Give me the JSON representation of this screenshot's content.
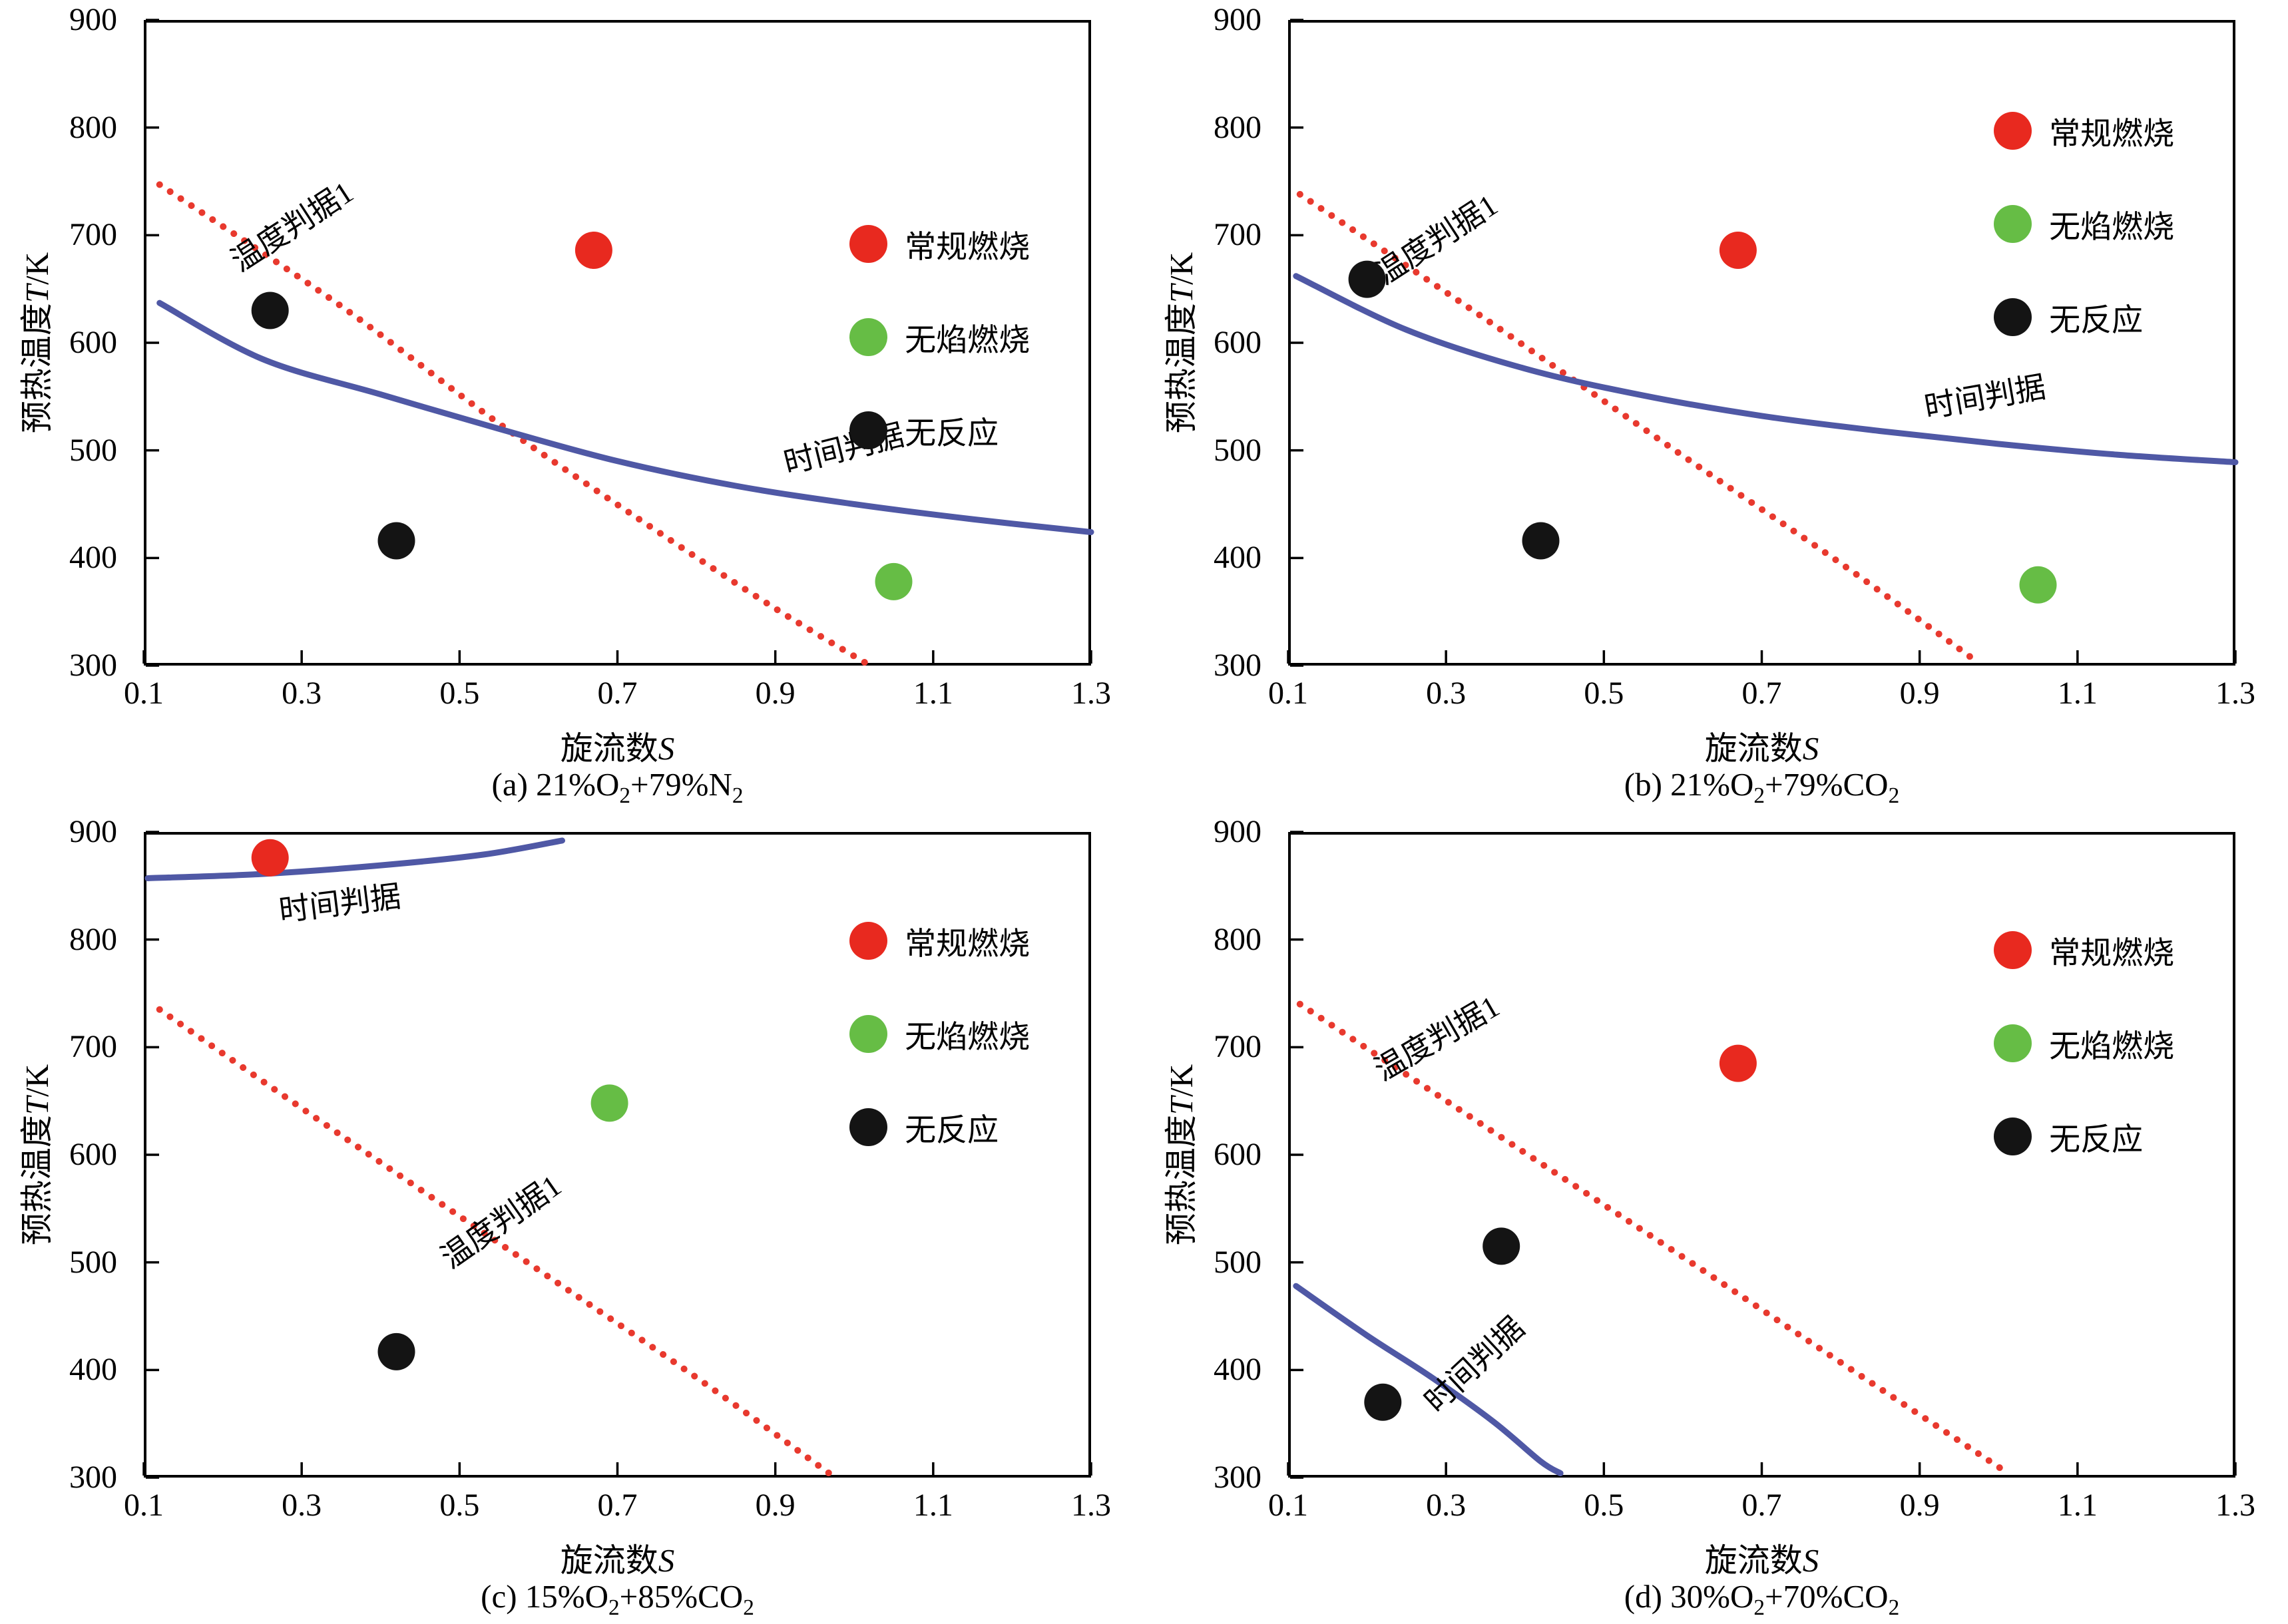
{
  "figure": {
    "background": "#ffffff",
    "axis": {
      "xlabel_parts": [
        {
          "t": "旋流数"
        },
        {
          "t": "S",
          "i": true
        }
      ],
      "ylabel_parts": [
        {
          "t": "预热温度"
        },
        {
          "t": "T",
          "i": true
        },
        {
          "t": "/K"
        }
      ],
      "x_ticks": [
        "0.1",
        "0.3",
        "0.5",
        "0.7",
        "0.9",
        "1.1",
        "1.3"
      ],
      "y_ticks": [
        "300",
        "400",
        "500",
        "600",
        "700",
        "800",
        "900"
      ],
      "x_range": [
        0.1,
        1.3
      ],
      "y_range": [
        300,
        900
      ]
    },
    "colors": {
      "conventional": "#e8291f",
      "flameless": "#66bd45",
      "no_reaction": "#141414",
      "temp_line": "#e8392e",
      "time_line": "#4f58a5",
      "axis": "#000000"
    }
  },
  "chart_data": [
    {
      "id": "a",
      "type": "scatter",
      "caption_text": "(a) 21%O2+79%N2",
      "caption_parts": [
        {
          "t": "(a) 21%O"
        },
        {
          "t": "2",
          "sub": true
        },
        {
          "t": "+79%N"
        },
        {
          "t": "2",
          "sub": true
        }
      ],
      "legend": [
        {
          "label": "常规燃烧",
          "color": "#e8291f",
          "series": "conventional"
        },
        {
          "label": "无焰燃烧",
          "color": "#66bd45",
          "series": "flameless"
        },
        {
          "label": "无反应",
          "color": "#141414",
          "series": "no_reaction"
        }
      ],
      "legend_pos": {
        "left_frac": 0.745,
        "top_frac": 0.275
      },
      "points": {
        "conventional": [
          [
            0.67,
            686
          ]
        ],
        "flameless": [
          [
            1.05,
            378
          ]
        ],
        "no_reaction": [
          [
            0.26,
            630
          ],
          [
            0.42,
            416
          ]
        ]
      },
      "lines": [
        {
          "name": "temp-criterion",
          "style": "dotted",
          "color": "#e8392e",
          "points": [
            [
              0.12,
              747
            ],
            [
              0.35,
              634
            ],
            [
              0.55,
              525
            ],
            [
              0.75,
              425
            ],
            [
              0.9,
              353
            ],
            [
              1.02,
              300
            ]
          ],
          "label": {
            "text": "温度判据1",
            "x": 0.295,
            "y": 700,
            "rot": -33
          }
        },
        {
          "name": "time-criterion",
          "style": "solid",
          "color": "#4f58a5",
          "points": [
            [
              0.12,
              637
            ],
            [
              0.25,
              585
            ],
            [
              0.4,
              552
            ],
            [
              0.55,
              520
            ],
            [
              0.7,
              490
            ],
            [
              0.85,
              467
            ],
            [
              1.0,
              450
            ],
            [
              1.15,
              436
            ],
            [
              1.3,
              424
            ]
          ],
          "label": {
            "text": "时间判据",
            "x": 0.99,
            "y": 492,
            "rot": -14
          }
        }
      ]
    },
    {
      "id": "b",
      "type": "scatter",
      "caption_text": "(b) 21%O2+79%CO2",
      "caption_parts": [
        {
          "t": "(b) 21%O"
        },
        {
          "t": "2",
          "sub": true
        },
        {
          "t": "+79%CO"
        },
        {
          "t": "2",
          "sub": true
        }
      ],
      "legend": [
        {
          "label": "常规燃烧",
          "color": "#e8291f",
          "series": "conventional"
        },
        {
          "label": "无焰燃烧",
          "color": "#66bd45",
          "series": "flameless"
        },
        {
          "label": "无反应",
          "color": "#141414",
          "series": "no_reaction"
        }
      ],
      "legend_pos": {
        "left_frac": 0.745,
        "top_frac": 0.099
      },
      "points": {
        "conventional": [
          [
            0.67,
            686
          ]
        ],
        "flameless": [
          [
            1.05,
            375
          ]
        ],
        "no_reaction": [
          [
            0.2,
            659
          ],
          [
            0.42,
            416
          ]
        ]
      },
      "lines": [
        {
          "name": "temp-criterion",
          "style": "dotted",
          "color": "#e8392e",
          "points": [
            [
              0.115,
              738
            ],
            [
              0.35,
              622
            ],
            [
              0.6,
              495
            ],
            [
              0.8,
              395
            ],
            [
              0.97,
              305
            ]
          ],
          "label": {
            "text": "温度判据1",
            "x": 0.295,
            "y": 688,
            "rot": -33
          }
        },
        {
          "name": "time-criterion",
          "style": "solid",
          "color": "#4f58a5",
          "points": [
            [
              0.11,
              662
            ],
            [
              0.25,
              612
            ],
            [
              0.4,
              576
            ],
            [
              0.55,
              551
            ],
            [
              0.7,
              532
            ],
            [
              0.85,
              518
            ],
            [
              1.0,
              506
            ],
            [
              1.15,
              496
            ],
            [
              1.3,
              489
            ]
          ],
          "label": {
            "text": "时间判据",
            "x": 0.985,
            "y": 540,
            "rot": -10
          }
        }
      ]
    },
    {
      "id": "c",
      "type": "scatter",
      "caption_text": "(c) 15%O2+85%CO2",
      "caption_parts": [
        {
          "t": "(c) 15%O"
        },
        {
          "t": "2",
          "sub": true
        },
        {
          "t": "+85%CO"
        },
        {
          "t": "2",
          "sub": true
        }
      ],
      "legend": [
        {
          "label": "常规燃烧",
          "color": "#e8291f",
          "series": "conventional"
        },
        {
          "label": "无焰燃烧",
          "color": "#66bd45",
          "series": "flameless"
        },
        {
          "label": "无反应",
          "color": "#141414",
          "series": "no_reaction"
        }
      ],
      "legend_pos": {
        "left_frac": 0.745,
        "top_frac": 0.096
      },
      "points": {
        "conventional": [
          [
            0.26,
            876
          ]
        ],
        "flameless": [
          [
            0.69,
            648
          ]
        ],
        "no_reaction": [
          [
            0.42,
            417
          ]
        ]
      },
      "lines": [
        {
          "name": "temp-criterion",
          "style": "dotted",
          "color": "#e8392e",
          "points": [
            [
              0.12,
              735
            ],
            [
              0.35,
              618
            ],
            [
              0.6,
              493
            ],
            [
              0.8,
              393
            ],
            [
              0.97,
              303
            ]
          ],
          "label": {
            "text": "温度判据1",
            "x": 0.56,
            "y": 530,
            "rot": -35
          }
        },
        {
          "name": "time-criterion",
          "style": "solid",
          "color": "#4f58a5",
          "points": [
            [
              0.105,
              857
            ],
            [
              0.25,
              861
            ],
            [
              0.4,
              869
            ],
            [
              0.53,
              879
            ],
            [
              0.63,
              892
            ]
          ],
          "label": {
            "text": "时间判据",
            "x": 0.35,
            "y": 824,
            "rot": -7
          }
        }
      ]
    },
    {
      "id": "d",
      "type": "scatter",
      "caption_text": "(d) 30%O2+70%CO2",
      "caption_parts": [
        {
          "t": "(d) 30%O"
        },
        {
          "t": "2",
          "sub": true
        },
        {
          "t": "+70%CO"
        },
        {
          "t": "2",
          "sub": true
        }
      ],
      "legend": [
        {
          "label": "常规燃烧",
          "color": "#e8291f",
          "series": "conventional"
        },
        {
          "label": "无焰燃烧",
          "color": "#66bd45",
          "series": "flameless"
        },
        {
          "label": "无反应",
          "color": "#141414",
          "series": "no_reaction"
        }
      ],
      "legend_pos": {
        "left_frac": 0.745,
        "top_frac": 0.111
      },
      "points": {
        "conventional": [
          [
            0.67,
            685
          ]
        ],
        "flameless": [],
        "no_reaction": [
          [
            0.37,
            515
          ],
          [
            0.22,
            370
          ]
        ]
      },
      "lines": [
        {
          "name": "temp-criterion",
          "style": "dotted",
          "color": "#e8392e",
          "points": [
            [
              0.115,
              740
            ],
            [
              0.35,
              626
            ],
            [
              0.6,
              505
            ],
            [
              0.8,
              407
            ],
            [
              1.01,
              305
            ]
          ],
          "label": {
            "text": "温度判据1",
            "x": 0.295,
            "y": 700,
            "rot": -30
          }
        },
        {
          "name": "time-criterion",
          "style": "solid",
          "color": "#4f58a5",
          "points": [
            [
              0.11,
              478
            ],
            [
              0.2,
              432
            ],
            [
              0.28,
              394
            ],
            [
              0.36,
              352
            ],
            [
              0.42,
              315
            ],
            [
              0.445,
              304
            ]
          ],
          "label": {
            "text": "时间判据",
            "x": 0.345,
            "y": 398,
            "rot": -43
          }
        }
      ]
    }
  ]
}
